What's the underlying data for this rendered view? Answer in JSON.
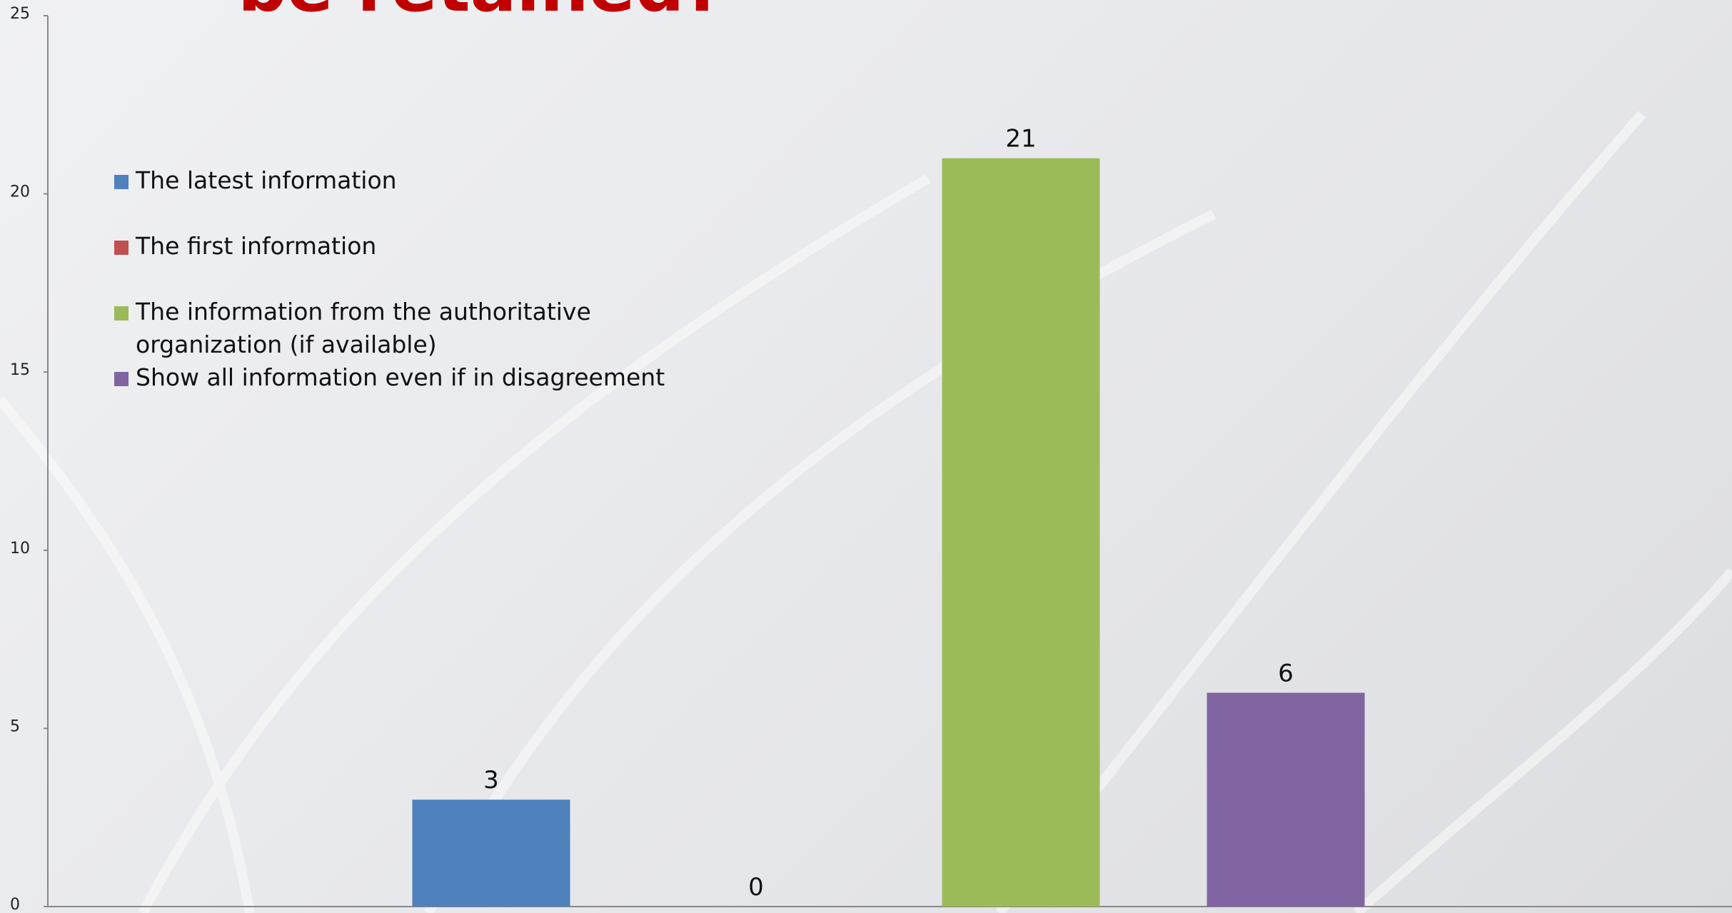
{
  "chart_data": {
    "type": "bar",
    "title": "be retained?",
    "categories": [
      null
    ],
    "series": [
      {
        "name": "The latest information",
        "color": "#4f81bd",
        "values": [
          3
        ]
      },
      {
        "name": "The first information",
        "color": "#c0504d",
        "values": [
          0
        ]
      },
      {
        "name": "The information from the authoritative organization (if available)",
        "color": "#9bbb59",
        "values": [
          21
        ]
      },
      {
        "name": "Show all information even if in disagreement",
        "color": "#8064a2",
        "values": [
          6
        ]
      }
    ],
    "ylim": [
      0,
      25
    ],
    "yticks": [
      0,
      5,
      10,
      15,
      20,
      25
    ],
    "grid": false,
    "legend": "left"
  }
}
